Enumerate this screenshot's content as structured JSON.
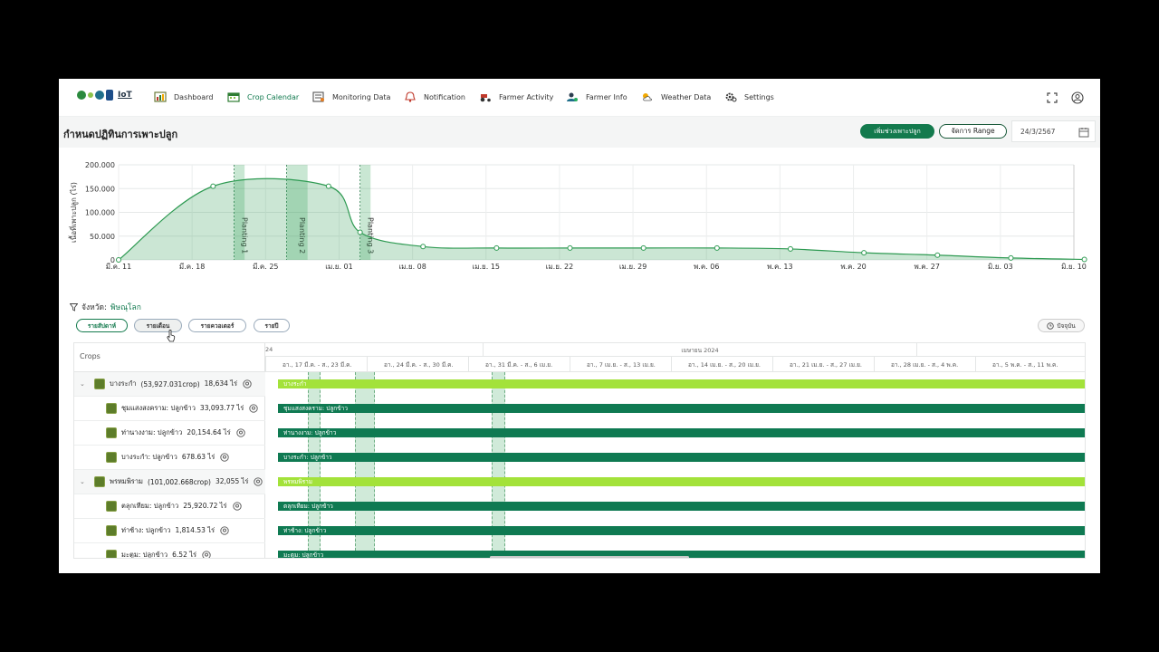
{
  "nav": {
    "logo_text": "IoT",
    "items": [
      {
        "label": "Dashboard",
        "icon": "dashboard-icon"
      },
      {
        "label": "Crop Calendar",
        "icon": "calendar-icon",
        "active": true
      },
      {
        "label": "Monitoring Data",
        "icon": "monitoring-icon"
      },
      {
        "label": "Notification",
        "icon": "bell-icon"
      },
      {
        "label": "Farmer Activity",
        "icon": "tractor-icon"
      },
      {
        "label": "Farmer Info",
        "icon": "farmer-icon"
      },
      {
        "label": "Weather Data",
        "icon": "weather-icon"
      },
      {
        "label": "Settings",
        "icon": "gear-icon"
      }
    ]
  },
  "header": {
    "title": "กำหนดปฏิทินการเพาะปลูก",
    "add_button": "เพิ่มช่วงเพาะปลูก",
    "range_button": "จัดการ Range",
    "date": "24/3/2567"
  },
  "chart_data": {
    "type": "area",
    "ylabel": "เนื้อที่เพาะปลูก (ไร่)",
    "yticks": [
      "0",
      "50.000",
      "100.000",
      "150.000",
      "200.000"
    ],
    "ylim": [
      0,
      200000
    ],
    "x": [
      "มี.ค. 11",
      "มี.ค. 18",
      "มี.ค. 25",
      "เม.ย. 01",
      "เม.ย. 08",
      "เม.ย. 15",
      "เม.ย. 22",
      "เม.ย. 29",
      "พ.ค. 06",
      "พ.ค. 13",
      "พ.ค. 20",
      "พ.ค. 27",
      "มิ.ย. 03",
      "มิ.ย. 10"
    ],
    "points": [
      {
        "x": "มี.ค. 11",
        "y": 0
      },
      {
        "x": "มี.ค. 20",
        "y": 155000
      },
      {
        "x": "มี.ค. 31",
        "y": 155000
      },
      {
        "x": "เม.ย. 03",
        "y": 58000
      },
      {
        "x": "เม.ย. 09",
        "y": 28000
      },
      {
        "x": "เม.ย. 16",
        "y": 25000
      },
      {
        "x": "เม.ย. 23",
        "y": 25000
      },
      {
        "x": "เม.ย. 30",
        "y": 25000
      },
      {
        "x": "พ.ค. 07",
        "y": 25000
      },
      {
        "x": "พ.ค. 14",
        "y": 23000
      },
      {
        "x": "พ.ค. 21",
        "y": 15000
      },
      {
        "x": "พ.ค. 28",
        "y": 10000
      },
      {
        "x": "มิ.ย. 04",
        "y": 4000
      },
      {
        "x": "มิ.ย. 11",
        "y": 1000
      }
    ],
    "plantings": [
      {
        "label": "Planting 1",
        "start": "มี.ค. 22",
        "end": "มี.ค. 23"
      },
      {
        "label": "Planting 2",
        "start": "มี.ค. 27",
        "end": "มี.ค. 29"
      },
      {
        "label": "Planting 3",
        "start": "เม.ย. 03",
        "end": "เม.ย. 04"
      }
    ],
    "grid": true,
    "color": "#2e9a52"
  },
  "filter": {
    "label": "จังหวัด:",
    "value": "พิษณุโลก"
  },
  "views": {
    "weekly": "รายสัปดาห์",
    "monthly": "รายเดือน",
    "quarterly": "รายควอเตอร์",
    "yearly": "รายปี",
    "now": "ปัจจุบัน"
  },
  "gantt": {
    "crops_header": "Crops",
    "months": [
      "24",
      "เมษายน 2024"
    ],
    "weeks": [
      "อา., 17 มี.ค. - ส., 23 มี.ค.",
      "อา., 24 มี.ค. - ส., 30 มี.ค.",
      "อา., 31 มี.ค. - ส., 6 เม.ย.",
      "อา., 7 เม.ย. - ส., 13 เม.ย.",
      "อา., 14 เม.ย. - ส., 20 เม.ย.",
      "อา., 21 เม.ย. - ส., 27 เม.ย.",
      "อา., 28 เม.ย. - ส., 4 พ.ค.",
      "อา., 5 พ.ค. - ส., 11 พ.ค."
    ],
    "rows": [
      {
        "name": "บางระกำ",
        "crops": "(53,927.031crop)",
        "area": "18,634 ไร่",
        "bar": "บางระกำ",
        "parent": true
      },
      {
        "name": "ชุมแสงสงคราม: ปลูกข้าว",
        "area": "33,093.77 ไร่",
        "bar": "ชุมแสงสงคราม: ปลูกข้าว"
      },
      {
        "name": "ท่านางงาม: ปลูกข้าว",
        "area": "20,154.64 ไร่",
        "bar": "ท่านางงาม: ปลูกข้าว"
      },
      {
        "name": "บางระกำ: ปลูกข้าว",
        "area": "678.63 ไร่",
        "bar": "บางระกำ: ปลูกข้าว"
      },
      {
        "name": "พรหมพิราม",
        "crops": "(101,002.668crop)",
        "area": "32,055 ไร่",
        "bar": "พรหมพิราม",
        "parent": true
      },
      {
        "name": "ตลุกเทียม: ปลูกข้าว",
        "area": "25,920.72 ไร่",
        "bar": "ตลุกเทียม: ปลูกข้าว"
      },
      {
        "name": "ท่าช้าง: ปลูกข้าว",
        "area": "1,814.53 ไร่",
        "bar": "ท่าช้าง: ปลูกข้าว"
      },
      {
        "name": "มะตูม: ปลูกข้าว",
        "area": "6.52 ไร่",
        "bar": "มะตูม: ปลูกข้าว"
      }
    ]
  }
}
